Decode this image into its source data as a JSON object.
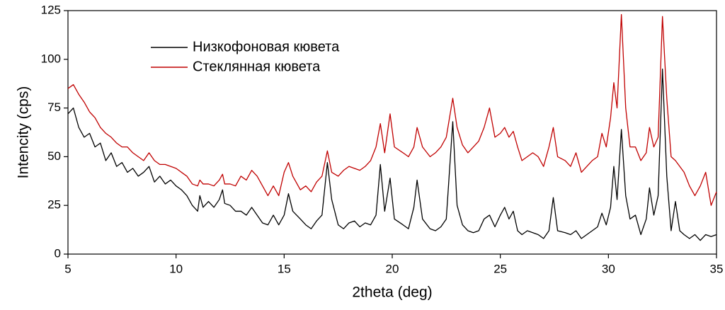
{
  "chart_data": {
    "type": "line",
    "xlabel": "2theta (deg)",
    "ylabel": "Intencity (cps)",
    "xlim": [
      5,
      35
    ],
    "ylim": [
      0,
      125
    ],
    "xticks": [
      5,
      10,
      15,
      20,
      25,
      30,
      35
    ],
    "yticks": [
      0,
      25,
      50,
      75,
      100,
      125
    ],
    "legend": "upper-left",
    "x": [
      5,
      5.25,
      5.5,
      5.75,
      6,
      6.25,
      6.5,
      6.75,
      7,
      7.25,
      7.5,
      7.75,
      8,
      8.25,
      8.5,
      8.75,
      9,
      9.25,
      9.5,
      9.75,
      10,
      10.25,
      10.5,
      10.75,
      11,
      11.1,
      11.25,
      11.5,
      11.75,
      12,
      12.15,
      12.25,
      12.5,
      12.75,
      13,
      13.25,
      13.5,
      13.75,
      14,
      14.25,
      14.5,
      14.75,
      15,
      15.2,
      15.4,
      15.75,
      16,
      16.25,
      16.5,
      16.75,
      17,
      17.2,
      17.5,
      17.75,
      18,
      18.25,
      18.5,
      18.75,
      19,
      19.25,
      19.45,
      19.65,
      19.9,
      20.1,
      20.5,
      20.75,
      21,
      21.15,
      21.4,
      21.75,
      22,
      22.25,
      22.5,
      22.8,
      23,
      23.25,
      23.5,
      23.75,
      24,
      24.25,
      24.5,
      24.75,
      25,
      25.2,
      25.4,
      25.6,
      25.8,
      26,
      26.25,
      26.5,
      26.75,
      27,
      27.25,
      27.45,
      27.65,
      28,
      28.25,
      28.5,
      28.75,
      29,
      29.25,
      29.5,
      29.7,
      29.9,
      30.1,
      30.25,
      30.4,
      30.6,
      30.8,
      31,
      31.25,
      31.5,
      31.75,
      31.9,
      32.1,
      32.3,
      32.5,
      32.7,
      32.9,
      33.1,
      33.3,
      33.5,
      33.75,
      34,
      34.25,
      34.5,
      34.75,
      35
    ],
    "series": [
      {
        "name": "Низкофоновая кювета",
        "color": "#000000",
        "values": [
          72,
          75,
          65,
          60,
          62,
          55,
          57,
          48,
          52,
          45,
          47,
          42,
          44,
          40,
          42,
          45,
          37,
          40,
          36,
          38,
          35,
          33,
          30,
          25,
          22,
          30,
          24,
          27,
          24,
          28,
          33,
          26,
          25,
          22,
          22,
          20,
          24,
          20,
          16,
          15,
          20,
          15,
          20,
          31,
          22,
          18,
          15,
          13,
          17,
          20,
          47,
          28,
          15,
          13,
          16,
          17,
          14,
          16,
          15,
          20,
          46,
          22,
          39,
          18,
          15,
          13,
          24,
          38,
          18,
          13,
          12,
          14,
          18,
          68,
          25,
          15,
          12,
          11,
          12,
          18,
          20,
          14,
          20,
          24,
          18,
          22,
          12,
          10,
          12,
          11,
          10,
          8,
          12,
          29,
          12,
          11,
          10,
          12,
          8,
          10,
          12,
          14,
          21,
          15,
          24,
          45,
          28,
          64,
          30,
          18,
          20,
          10,
          18,
          34,
          20,
          30,
          95,
          40,
          12,
          27,
          12,
          10,
          8,
          10,
          7,
          10,
          9,
          10
        ]
      },
      {
        "name": "Стеклянная кювета",
        "color": "#c00000",
        "values": [
          85,
          87,
          82,
          78,
          73,
          70,
          65,
          62,
          60,
          57,
          55,
          55,
          52,
          50,
          48,
          52,
          48,
          46,
          46,
          45,
          44,
          42,
          40,
          36,
          35,
          38,
          36,
          36,
          35,
          38,
          41,
          36,
          36,
          35,
          40,
          38,
          43,
          40,
          35,
          30,
          35,
          30,
          42,
          47,
          40,
          33,
          35,
          32,
          37,
          40,
          53,
          42,
          40,
          43,
          45,
          44,
          43,
          45,
          48,
          55,
          67,
          52,
          72,
          55,
          52,
          50,
          55,
          65,
          55,
          50,
          52,
          55,
          60,
          80,
          65,
          56,
          52,
          55,
          58,
          65,
          75,
          60,
          62,
          65,
          60,
          63,
          55,
          48,
          50,
          52,
          50,
          45,
          55,
          65,
          50,
          48,
          45,
          52,
          42,
          45,
          48,
          50,
          62,
          55,
          70,
          88,
          75,
          123,
          75,
          55,
          55,
          48,
          52,
          65,
          55,
          60,
          122,
          80,
          50,
          48,
          45,
          42,
          35,
          30,
          35,
          42,
          25,
          32
        ]
      }
    ]
  }
}
